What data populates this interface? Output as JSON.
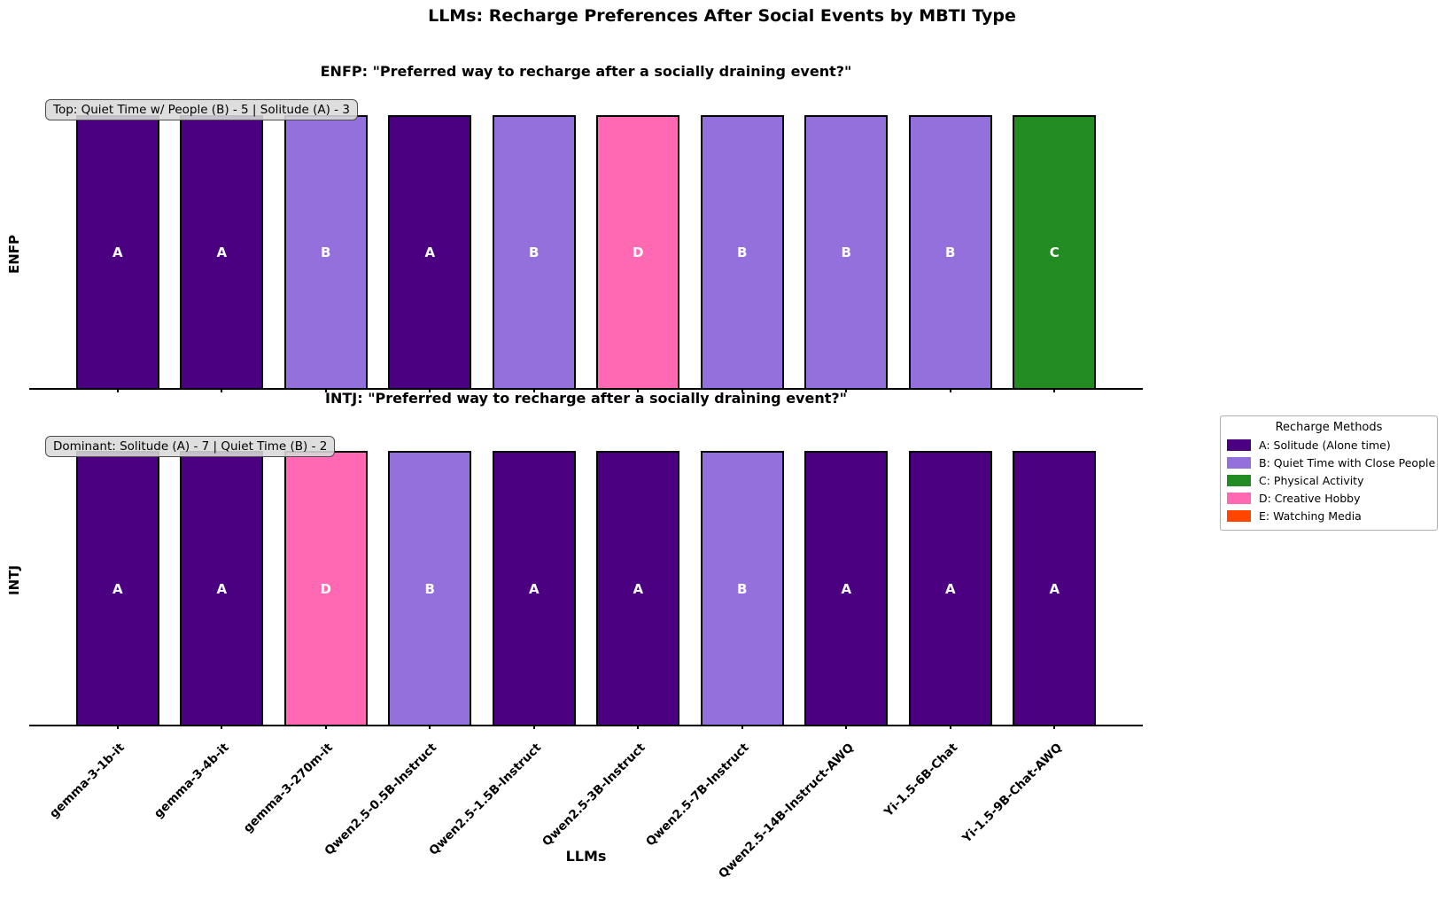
{
  "chart_data": {
    "type": "bar",
    "title": "LLMs: Recharge Preferences After Social Events by MBTI Type",
    "xlabel": "LLMs",
    "categories": [
      "gemma-3-1b-it",
      "gemma-3-4b-it",
      "gemma-3-270m-it",
      "Qwen2.5-0.5B-Instruct",
      "Qwen2.5-1.5B-Instruct",
      "Qwen2.5-3B-Instruct",
      "Qwen2.5-7B-Instruct",
      "Qwen2.5-14B-Instruct-AWQ",
      "Yi-1.5-6B-Chat",
      "Yi-1.5-9B-Chat-AWQ"
    ],
    "bar_height": 1,
    "ylim": [
      0,
      1.1
    ],
    "grid": false,
    "series": [
      {
        "name": "ENFP",
        "question_title": "ENFP: \"Preferred way to recharge after a socially draining event?\"",
        "annotation": "Top: Quiet Time w/ People (B) - 5 | Solitude (A) - 3",
        "values": [
          "A",
          "A",
          "B",
          "A",
          "B",
          "D",
          "B",
          "B",
          "B",
          "C"
        ]
      },
      {
        "name": "INTJ",
        "question_title": "INTJ: \"Preferred way to recharge after a socially draining event?\"",
        "annotation": "Dominant: Solitude (A) - 7 | Quiet Time (B) - 2",
        "values": [
          "A",
          "A",
          "D",
          "B",
          "A",
          "A",
          "B",
          "A",
          "A",
          "A"
        ]
      }
    ],
    "legend": {
      "title": "Recharge Methods",
      "position": "center right",
      "items": [
        {
          "key": "A",
          "label": "A: Solitude (Alone time)",
          "color": "#4B0082"
        },
        {
          "key": "B",
          "label": "B: Quiet Time with Close People",
          "color": "#9370DB"
        },
        {
          "key": "C",
          "label": "C: Physical Activity",
          "color": "#228B22"
        },
        {
          "key": "D",
          "label": "D: Creative Hobby",
          "color": "#FF69B4"
        },
        {
          "key": "E",
          "label": "E: Watching Media",
          "color": "#FF4500"
        }
      ]
    }
  }
}
